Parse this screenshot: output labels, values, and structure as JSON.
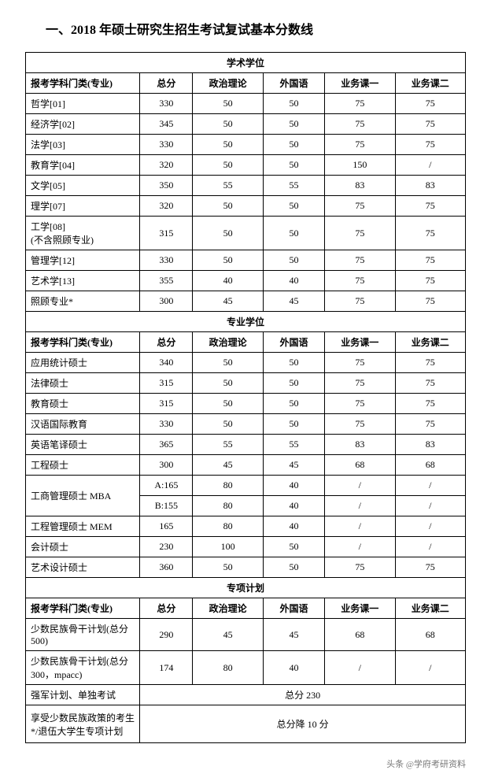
{
  "title": "一、2018 年硕士研究生招生考试复试基本分数线",
  "sections": [
    {
      "name": "学术学位",
      "header": [
        "报考学科门类(专业)",
        "总分",
        "政治理论",
        "外国语",
        "业务课一",
        "业务课二"
      ],
      "rows": [
        {
          "c": [
            "哲学[01]",
            "330",
            "50",
            "50",
            "75",
            "75"
          ]
        },
        {
          "c": [
            "经济学[02]",
            "345",
            "50",
            "50",
            "75",
            "75"
          ]
        },
        {
          "c": [
            "法学[03]",
            "330",
            "50",
            "50",
            "75",
            "75"
          ]
        },
        {
          "c": [
            "教育学[04]",
            "320",
            "50",
            "50",
            "150",
            "/"
          ]
        },
        {
          "c": [
            "文学[05]",
            "350",
            "55",
            "55",
            "83",
            "83"
          ]
        },
        {
          "c": [
            "理学[07]",
            "320",
            "50",
            "50",
            "75",
            "75"
          ]
        },
        {
          "c": [
            "工学[08]\n(不含照顾专业)",
            "315",
            "50",
            "50",
            "75",
            "75"
          ],
          "tall": true
        },
        {
          "c": [
            "管理学[12]",
            "330",
            "50",
            "50",
            "75",
            "75"
          ]
        },
        {
          "c": [
            "艺术学[13]",
            "355",
            "40",
            "40",
            "75",
            "75"
          ]
        },
        {
          "c": [
            "照顾专业*",
            "300",
            "45",
            "45",
            "75",
            "75"
          ]
        }
      ]
    },
    {
      "name": "专业学位",
      "header": [
        "报考学科门类(专业)",
        "总分",
        "政治理论",
        "外国语",
        "业务课一",
        "业务课二"
      ],
      "rows": [
        {
          "c": [
            "应用统计硕士",
            "340",
            "50",
            "50",
            "75",
            "75"
          ]
        },
        {
          "c": [
            "法律硕士",
            "315",
            "50",
            "50",
            "75",
            "75"
          ]
        },
        {
          "c": [
            "教育硕士",
            "315",
            "50",
            "50",
            "75",
            "75"
          ]
        },
        {
          "c": [
            "汉语国际教育",
            "330",
            "50",
            "50",
            "75",
            "75"
          ]
        },
        {
          "c": [
            "英语笔译硕士",
            "365",
            "55",
            "55",
            "83",
            "83"
          ]
        },
        {
          "c": [
            "工程硕士",
            "300",
            "45",
            "45",
            "68",
            "68"
          ]
        },
        {
          "mba_first": true,
          "c": [
            "工商管理硕士 MBA",
            "A:165",
            "80",
            "40",
            "/",
            "/"
          ]
        },
        {
          "mba_second": true,
          "c": [
            "B:155",
            "80",
            "40",
            "/",
            "/"
          ]
        },
        {
          "c": [
            "工程管理硕士 MEM",
            "165",
            "80",
            "40",
            "/",
            "/"
          ]
        },
        {
          "c": [
            "会计硕士",
            "230",
            "100",
            "50",
            "/",
            "/"
          ]
        },
        {
          "c": [
            "艺术设计硕士",
            "360",
            "50",
            "50",
            "75",
            "75"
          ]
        }
      ]
    },
    {
      "name": "专项计划",
      "header": [
        "报考学科门类(专业)",
        "总分",
        "政治理论",
        "外国语",
        "业务课一",
        "业务课二"
      ],
      "rows": [
        {
          "c": [
            "少数民族骨干计划(总分 500)",
            "290",
            "45",
            "45",
            "68",
            "68"
          ],
          "tall": true
        },
        {
          "c": [
            "少数民族骨干计划(总分 300，mpacc)",
            "174",
            "80",
            "40",
            "/",
            "/"
          ],
          "tall": true
        },
        {
          "span_first": "强军计划、单独考试",
          "span_rest": "总分 230"
        },
        {
          "span_first": "享受少数民族政策的考生*/退伍大学生专项计划",
          "span_rest": "总分降 10 分",
          "taller": true
        }
      ]
    }
  ],
  "footer": "头条 @学府考研资料"
}
